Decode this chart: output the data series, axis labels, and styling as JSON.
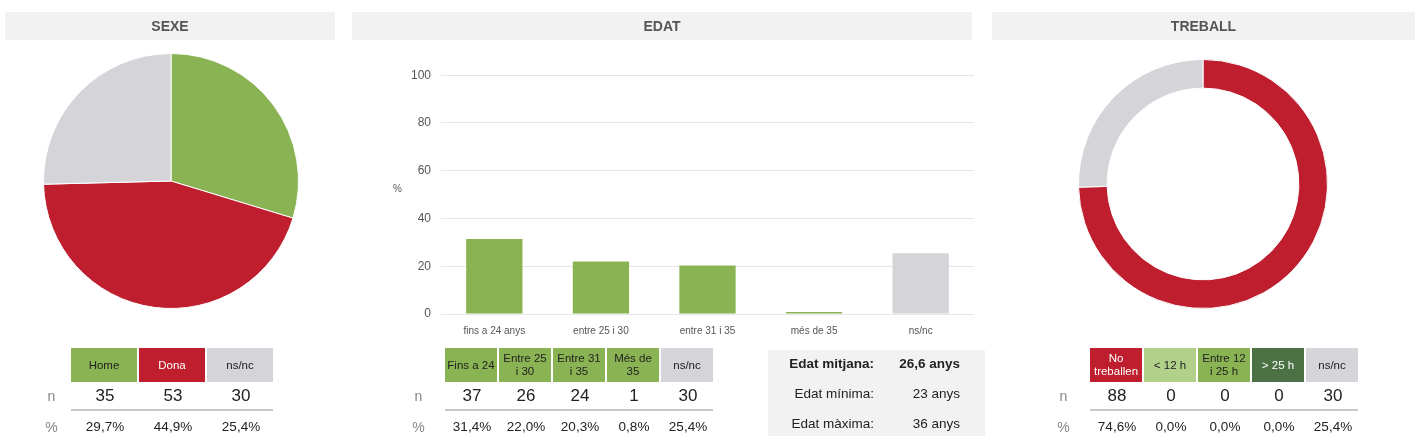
{
  "chart_data": [
    {
      "type": "pie",
      "title": "SEXE",
      "categories": [
        null,
        null,
        null
      ],
      "values": [
        29.7,
        44.9,
        25.4
      ],
      "colors": [
        "#8ab454",
        "#be1e2d",
        "#d5d4d9"
      ]
    },
    {
      "type": "other",
      "categories": [
        "Home",
        "Dona",
        "ns/nc"
      ],
      "colors": [
        "#8ab454",
        "#be1e2d",
        "#d5d4d9"
      ],
      "data_labels": true,
      "series": [
        {
          "name": "n",
          "values": [
            35,
            53,
            30
          ]
        },
        {
          "name": "%",
          "values": [
            29.7,
            44.9,
            25.4
          ],
          "value_labels": [
            "29,7%",
            "44,9%",
            "25,4%"
          ]
        }
      ]
    },
    {
      "type": "bar",
      "title": "EDAT",
      "categories": [
        "fins a 24 anys",
        "entre 25 i 30",
        "entre 31 i 35",
        "més de 35",
        "ns/nc"
      ],
      "values": [
        31.4,
        22.0,
        20.3,
        0.8,
        25.4
      ],
      "colors": [
        "#8ab454",
        "#8ab454",
        "#8ab454",
        "#8ab454",
        "#d5d4d9"
      ],
      "ylabel": "%",
      "ylim": [
        0,
        100
      ],
      "yticks": [
        0,
        20,
        40,
        60,
        80,
        100
      ],
      "grid": "y"
    },
    {
      "type": "other",
      "categories": [
        "Fins a 24",
        "Entre 25 i 30",
        "Entre 31 i 35",
        "Més de 35",
        "ns/nc"
      ],
      "colors": [
        "#8ab454",
        "#8ab454",
        "#8ab454",
        "#8ab454",
        "#d5d4d9"
      ],
      "data_labels": true,
      "series": [
        {
          "name": "n",
          "values": [
            37,
            26,
            24,
            1,
            30
          ]
        },
        {
          "name": "%",
          "values": [
            31.4,
            22.0,
            20.3,
            0.8,
            25.4
          ],
          "value_labels": [
            "31,4%",
            "22,0%",
            "20,3%",
            "0,8%",
            "25,4%"
          ]
        }
      ]
    },
    {
      "type": "other",
      "annotations": [
        "Edat mitjana:",
        "26,6 anys",
        "Edat mínima:",
        "23 anys",
        "Edat màxima:",
        "36 anys"
      ]
    },
    {
      "type": "donut",
      "title": "TREBALL",
      "categories": [
        null,
        null,
        null,
        null,
        null
      ],
      "values": [
        74.6,
        0.0,
        0.0,
        0.0,
        25.4
      ],
      "colors": [
        "#be1e2d",
        "#b1d08a",
        "#8ab454",
        "#4b7145",
        "#d5d4d9"
      ]
    },
    {
      "type": "other",
      "categories": [
        "No treballen",
        "< 12 h",
        "Entre 12 i 25 h",
        "> 25 h",
        "ns/nc"
      ],
      "colors": [
        "#be1e2d",
        "#b1d08a",
        "#8ab454",
        "#4b7145",
        "#d5d4d9"
      ],
      "data_labels": true,
      "series": [
        {
          "name": "n",
          "values": [
            88,
            0,
            0,
            0,
            30
          ]
        },
        {
          "name": "%",
          "values": [
            74.6,
            0.0,
            0.0,
            0.0,
            25.4
          ],
          "value_labels": [
            "74,6%",
            "0,0%",
            "0,0%",
            "0,0%",
            "25,4%"
          ]
        }
      ]
    }
  ]
}
